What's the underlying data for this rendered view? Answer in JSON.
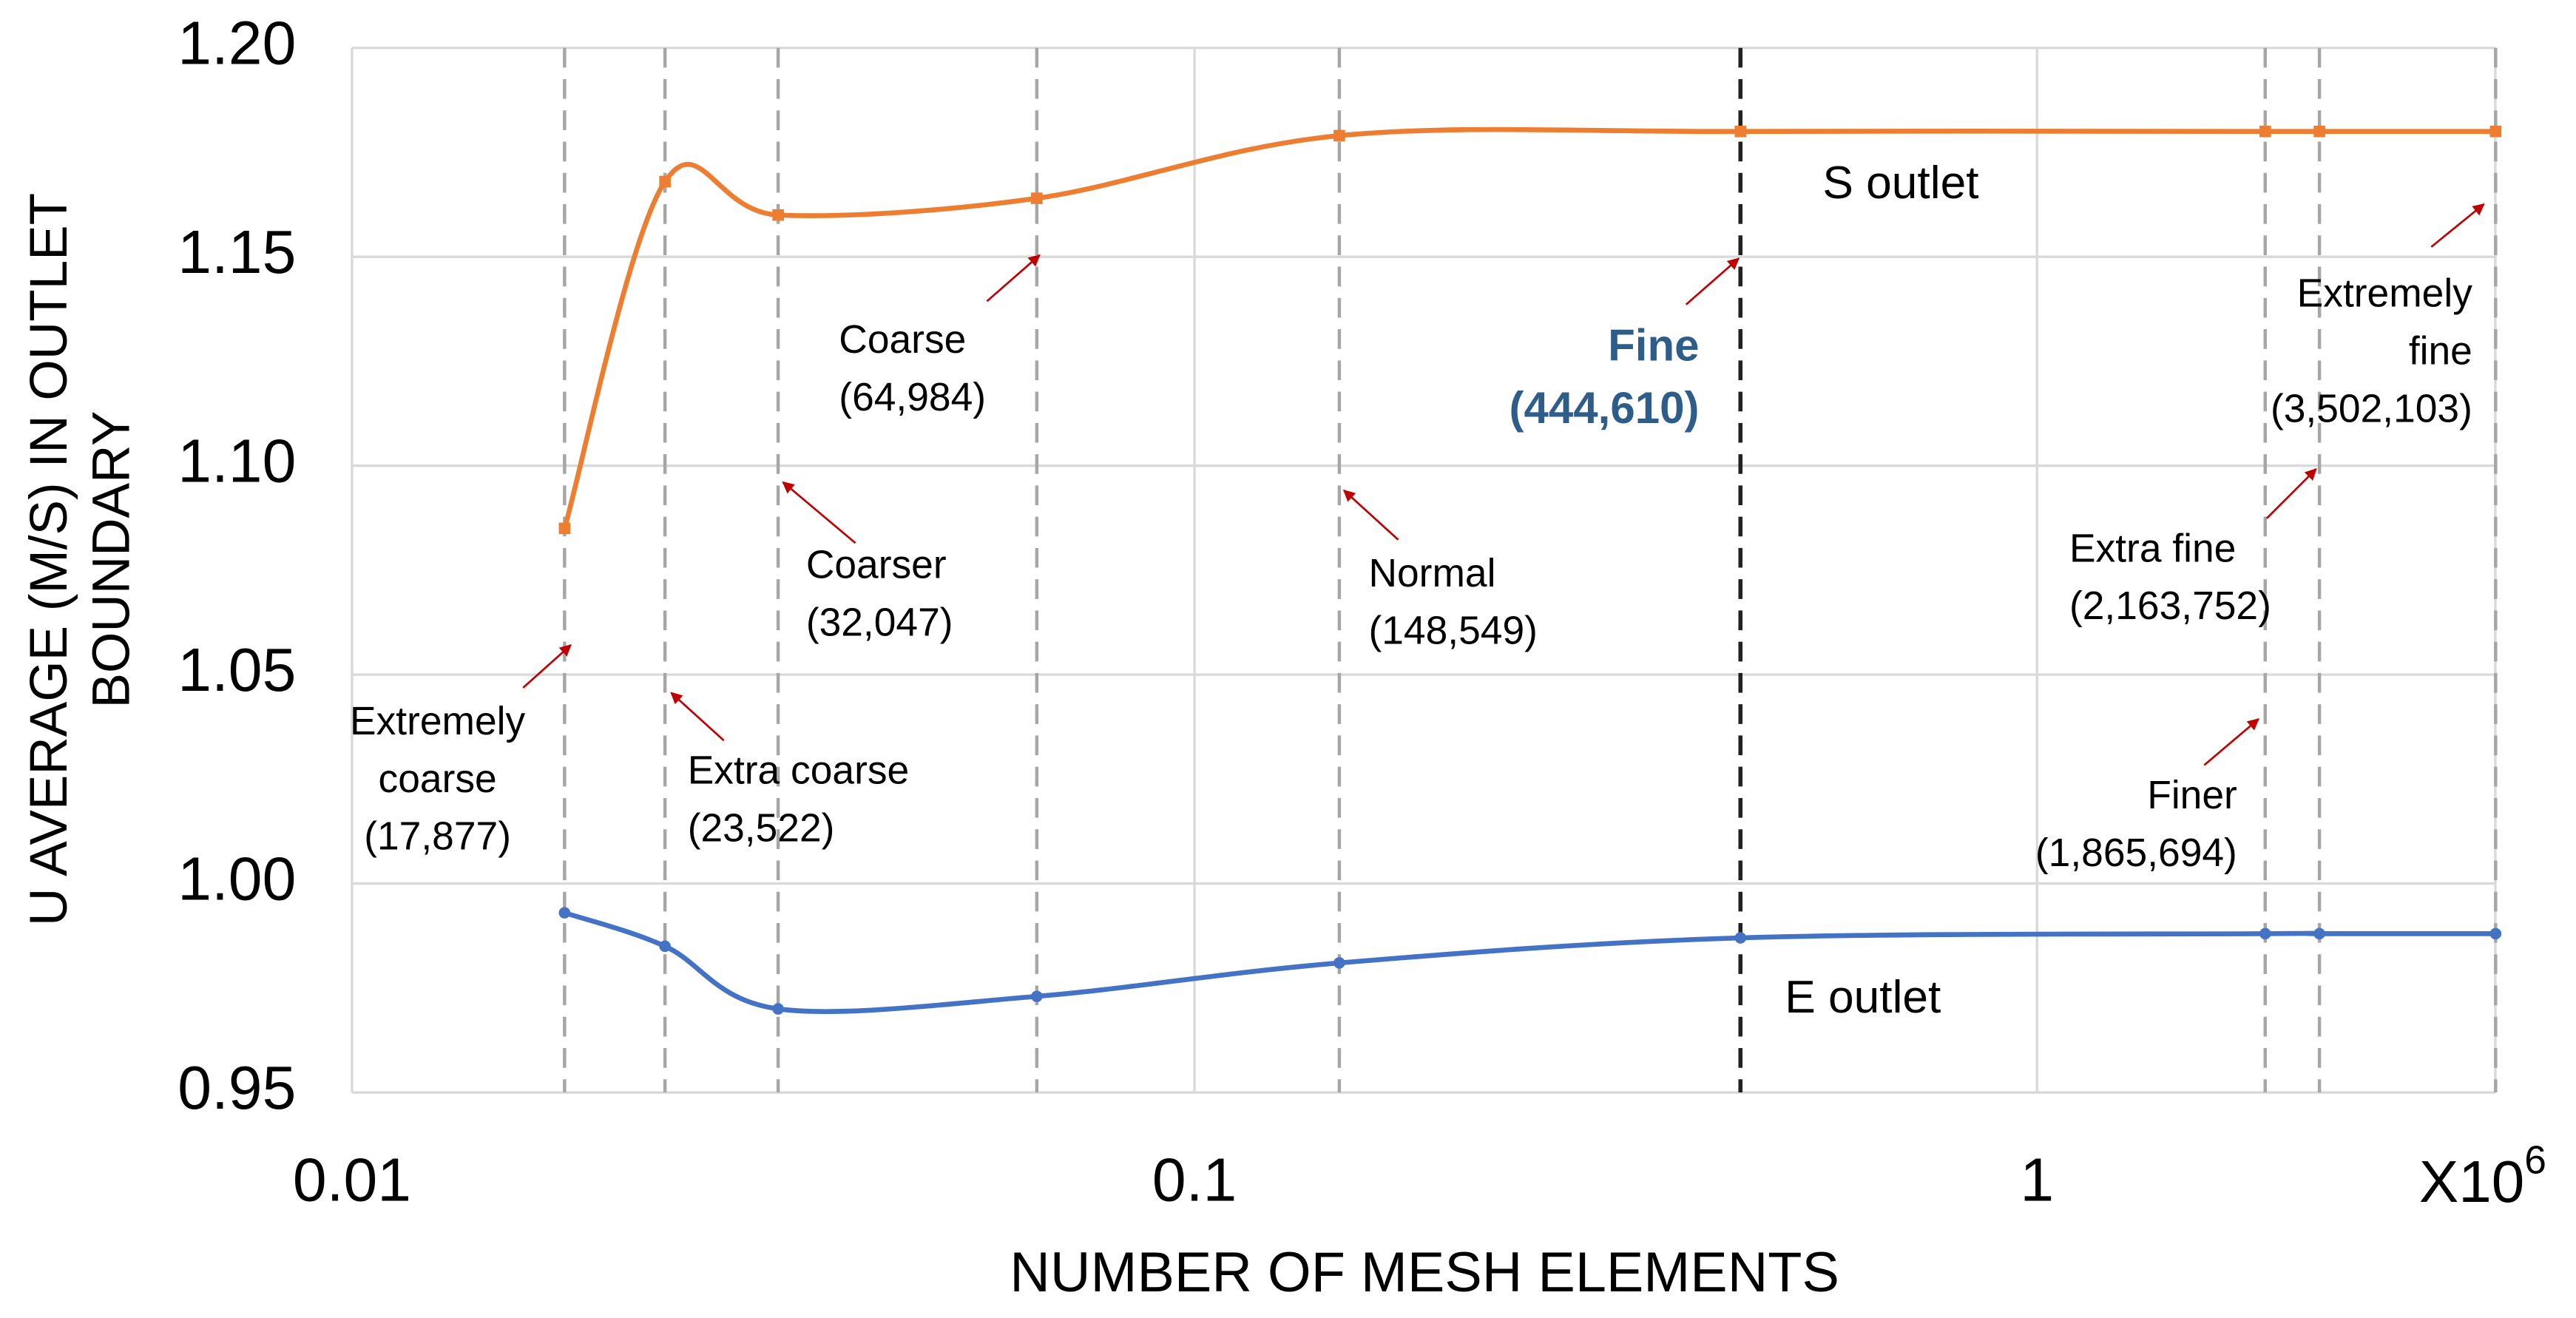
{
  "chart_data": {
    "type": "line",
    "x_label": "NUMBER OF MESH ELEMENTS",
    "x_unit": {
      "base": "X10",
      "exponent": "6"
    },
    "y_label": [
      "U AVERAGE (M/S) IN OUTLET",
      "BOUNDARY"
    ],
    "x": [
      0.017877,
      0.023522,
      0.032047,
      0.064984,
      0.148549,
      0.44461,
      1.865694,
      2.163752,
      3.502103
    ],
    "series": [
      {
        "name": "S outlet",
        "color": "#ed7d31",
        "marker": "square",
        "values": [
          1.085,
          1.168,
          1.16,
          1.164,
          1.179,
          1.18,
          1.18,
          1.18,
          1.18
        ]
      },
      {
        "name": "E outlet",
        "color": "#4472c4",
        "marker": "circle",
        "values": [
          0.993,
          0.985,
          0.97,
          0.973,
          0.981,
          0.987,
          0.988,
          0.988,
          0.988
        ]
      }
    ],
    "annotations": [
      {
        "lines": [
          "Extremely",
          "coarse",
          "(17,877)"
        ]
      },
      {
        "lines": [
          "Extra coarse",
          "(23,522)"
        ]
      },
      {
        "lines": [
          "Coarser",
          "(32,047)"
        ]
      },
      {
        "lines": [
          "Coarse",
          "(64,984)"
        ]
      },
      {
        "lines": [
          "Normal",
          "(148,549)"
        ]
      },
      {
        "lines": [
          "Fine",
          "(444,610)"
        ],
        "highlight": true,
        "color": "#2e5d8a"
      },
      {
        "lines": [
          "Finer",
          "(1,865,694)"
        ]
      },
      {
        "lines": [
          "Extra fine",
          "(2,163,752)"
        ]
      },
      {
        "lines": [
          "Extremely",
          "fine",
          "(3,502,103)"
        ]
      }
    ],
    "arrow_color": "#c00000",
    "x_scale": "log",
    "xlim": [
      0.01,
      3.5
    ],
    "xticks": [
      0.01,
      0.1,
      1
    ],
    "ylim": [
      0.95,
      1.2
    ],
    "yticks": [
      {
        "value": 0.95,
        "label": "0.95"
      },
      {
        "value": 1.0,
        "label": "1.00"
      },
      {
        "value": 1.05,
        "label": "1.05"
      },
      {
        "value": 1.1,
        "label": "1.10"
      },
      {
        "value": 1.15,
        "label": "1.15"
      },
      {
        "value": 1.2,
        "label": "1.20"
      }
    ],
    "grid": true
  }
}
